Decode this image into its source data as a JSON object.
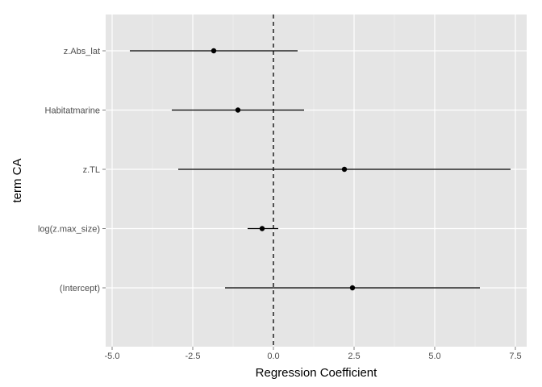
{
  "chart_data": {
    "type": "forest",
    "xlabel": "Regression Coefficient",
    "ylabel": "term CA",
    "xlim": [
      -5.2,
      7.85
    ],
    "xticks": [
      -5.0,
      -2.5,
      0.0,
      2.5,
      5.0,
      7.5
    ],
    "xtick_labels": [
      "-5.0",
      "-2.5",
      "0.0",
      "2.5",
      "5.0",
      "7.5"
    ],
    "reference_line": {
      "x": 0,
      "style": "dashed"
    },
    "grid": true,
    "background": "#e5e5e5",
    "gridline_color": "#ffffff",
    "terms": [
      {
        "label": "z.Abs_lat",
        "estimate": -1.85,
        "lower": -4.45,
        "upper": 0.75
      },
      {
        "label": "Habitatmarine",
        "estimate": -1.1,
        "lower": -3.15,
        "upper": 0.95
      },
      {
        "label": "z.TL",
        "estimate": 2.2,
        "lower": -2.95,
        "upper": 7.35
      },
      {
        "label": "log(z.max_size)",
        "estimate": -0.35,
        "lower": -0.8,
        "upper": 0.15
      },
      {
        "label": "(Intercept)",
        "estimate": 2.45,
        "lower": -1.5,
        "upper": 6.4
      }
    ]
  }
}
